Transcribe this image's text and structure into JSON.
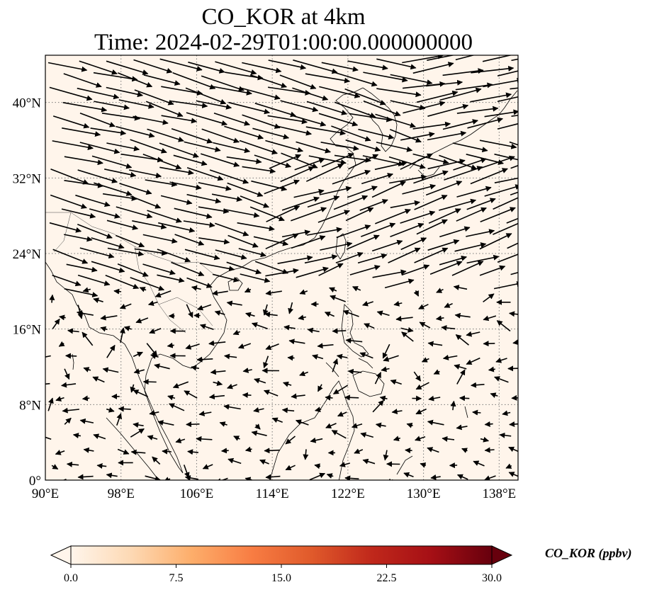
{
  "title": {
    "line1": "CO_KOR at 4km",
    "line2": "Time: 2024-02-29T01:00:00.000000000"
  },
  "map": {
    "extent": {
      "lon": [
        90,
        140
      ],
      "lat": [
        0,
        45
      ]
    },
    "x_ticks": [
      {
        "value": 90,
        "label": "90°E"
      },
      {
        "value": 98,
        "label": "98°E"
      },
      {
        "value": 106,
        "label": "106°E"
      },
      {
        "value": 114,
        "label": "114°E"
      },
      {
        "value": 122,
        "label": "122°E"
      },
      {
        "value": 130,
        "label": "130°E"
      },
      {
        "value": 138,
        "label": "138°E"
      }
    ],
    "y_ticks": [
      {
        "value": 0,
        "label": "0°"
      },
      {
        "value": 8,
        "label": "8°N"
      },
      {
        "value": 16,
        "label": "16°N"
      },
      {
        "value": 24,
        "label": "24°N"
      },
      {
        "value": 32,
        "label": "32°N"
      },
      {
        "value": 40,
        "label": "40°N"
      }
    ],
    "background_color": "#fff5eb",
    "gridlines": true
  },
  "colorbar": {
    "label": "CO_KOR (ppbv)",
    "min": 0.0,
    "max": 30.0,
    "ticks": [
      {
        "value": 0.0,
        "label": "0.0"
      },
      {
        "value": 7.5,
        "label": "7.5"
      },
      {
        "value": 15.0,
        "label": "15.0"
      },
      {
        "value": 22.5,
        "label": "22.5"
      },
      {
        "value": 30.0,
        "label": "30.0"
      }
    ],
    "colors": [
      "#fff5eb",
      "#fdd9b4",
      "#fdae6b",
      "#f87d43",
      "#e05a2b",
      "#c0281b",
      "#a50f15",
      "#67000d"
    ]
  }
}
